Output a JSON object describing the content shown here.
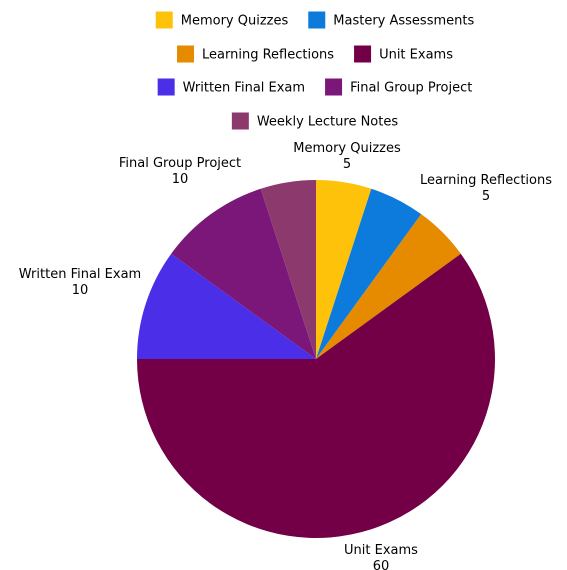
{
  "chart_data": {
    "type": "pie",
    "title": "",
    "legend_position": "top",
    "slices": [
      {
        "label": "Memory Quizzes",
        "value": 5,
        "color": "#FFC20A"
      },
      {
        "label": "Mastery Assessments",
        "value": 5,
        "color": "#0C7BDC",
        "show_label": false
      },
      {
        "label": "Learning Reflections",
        "value": 5,
        "color": "#E68A00"
      },
      {
        "label": "Unit Exams",
        "value": 60,
        "color": "#730046"
      },
      {
        "label": "Written Final Exam",
        "value": 10,
        "color": "#4B2EE8"
      },
      {
        "label": "Final Group Project",
        "value": 10,
        "color": "#7B1778"
      },
      {
        "label": "Weekly Lecture Notes",
        "value": 5,
        "color": "#8C3A6E",
        "show_label": false
      }
    ]
  }
}
